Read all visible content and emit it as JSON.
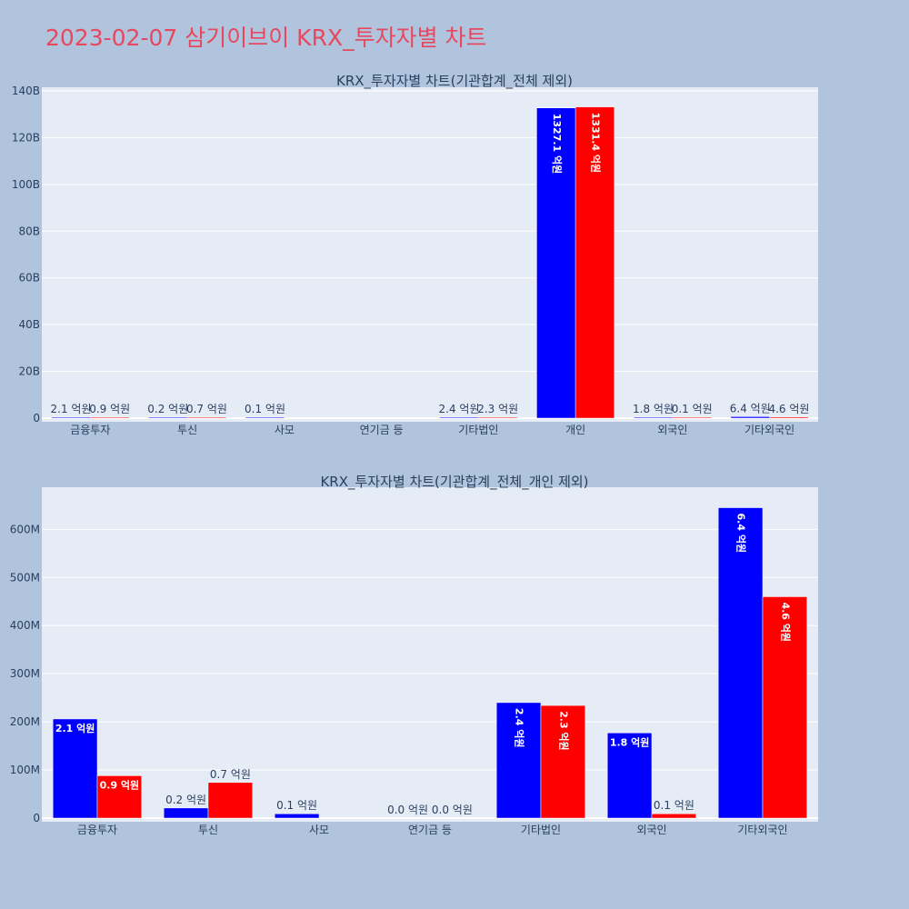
{
  "page_title": "2023-02-07 삼기이브이 KRX_투자자별 차트",
  "colors": {
    "background": "#b0c4de",
    "plot_bg": "#e5ecf6",
    "title": "#e8485f",
    "series_a": "#0000ff",
    "series_b": "#ff0000"
  },
  "chart_data": [
    {
      "type": "bar",
      "title": "KRX_투자자별 차트(기관합계_전체 제외)",
      "categories": [
        "금융투자",
        "투신",
        "사모",
        "연기금 등",
        "기타법인",
        "개인",
        "외국인",
        "기타외국인"
      ],
      "ylim": [
        0,
        140000000000
      ],
      "yticks": [
        0,
        20000000000,
        40000000000,
        60000000000,
        80000000000,
        100000000000,
        120000000000,
        140000000000
      ],
      "ytick_labels": [
        "0",
        "20B",
        "40B",
        "60B",
        "80B",
        "100B",
        "120B",
        "140B"
      ],
      "grid": true,
      "series": [
        {
          "color": "#0000ff",
          "values": [
            210000000,
            20000000,
            10000000,
            0,
            240000000,
            132710000000,
            180000000,
            640000000
          ],
          "labels": [
            "2.1 억원",
            "0.2 억원",
            "0.1 억원",
            "",
            "2.4 억원",
            "1327.1 억원",
            "1.8 억원",
            "6.4 억원"
          ]
        },
        {
          "color": "#ff0000",
          "values": [
            90000000,
            70000000,
            0,
            0,
            230000000,
            133140000000,
            10000000,
            460000000
          ],
          "labels": [
            "0.9 억원",
            "0.7 억원",
            "",
            "",
            "2.3 억원",
            "1331.4 억원",
            "0.1 억원",
            "4.6 억원"
          ]
        }
      ]
    },
    {
      "type": "bar",
      "title": "KRX_투자자별 차트(기관합계_전체_개인 제외)",
      "categories": [
        "금융투자",
        "투신",
        "사모",
        "연기금 등",
        "기타법인",
        "외국인",
        "기타외국인"
      ],
      "ylim": [
        0,
        680000000
      ],
      "yticks": [
        0,
        100000000,
        200000000,
        300000000,
        400000000,
        500000000,
        600000000
      ],
      "ytick_labels": [
        "0",
        "100M",
        "200M",
        "300M",
        "400M",
        "500M",
        "600M"
      ],
      "grid": true,
      "series": [
        {
          "color": "#0000ff",
          "values": [
            206000000,
            21000000,
            9000000,
            0,
            240000000,
            177000000,
            645000000
          ],
          "labels": [
            "2.1 억원",
            "0.2 억원",
            "0.1 억원",
            "0.0 억원",
            "2.4 억원",
            "1.8 억원",
            "6.4 억원"
          ]
        },
        {
          "color": "#ff0000",
          "values": [
            88000000,
            74000000,
            0,
            0,
            234000000,
            9000000,
            460000000
          ],
          "labels": [
            "0.9 억원",
            "0.7 억원",
            "",
            "0.0 억원",
            "2.3 억원",
            "0.1 억원",
            "4.6 억원"
          ]
        }
      ]
    }
  ]
}
